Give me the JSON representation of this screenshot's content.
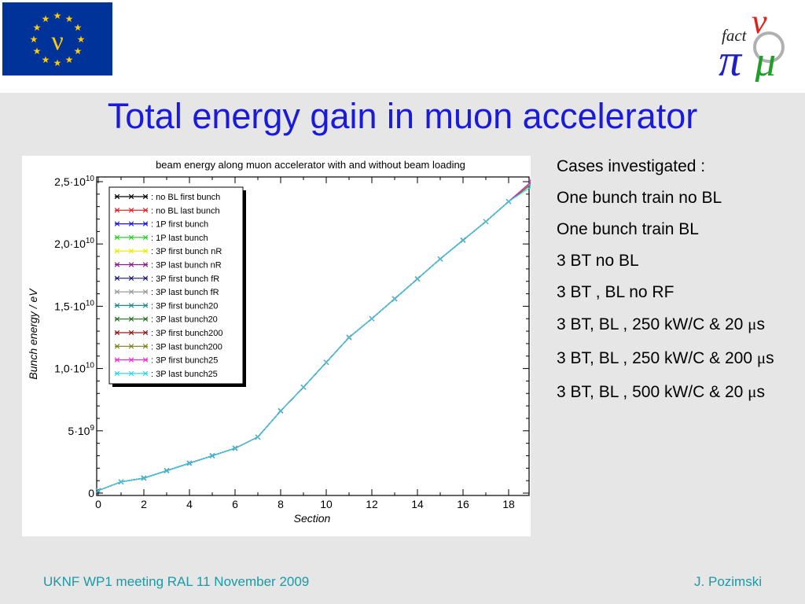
{
  "title": "Total energy gain in muon accelerator",
  "logos": {
    "eu_flag_letter": "ν",
    "fact_logo_text": "fact"
  },
  "chart_data": {
    "type": "line",
    "title": "beam energy along muon accelerator with and without beam loading",
    "xlabel": "Section",
    "ylabel": "Bunch energy / eV",
    "xlim": [
      0,
      19
    ],
    "ylim": [
      0,
      25000000000
    ],
    "x_ticks": [
      {
        "value": 0,
        "label": "0"
      },
      {
        "value": 2,
        "label": "2"
      },
      {
        "value": 4,
        "label": "4"
      },
      {
        "value": 6,
        "label": "6"
      },
      {
        "value": 8,
        "label": "8"
      },
      {
        "value": 10,
        "label": "10"
      },
      {
        "value": 12,
        "label": "12"
      },
      {
        "value": 14,
        "label": "14"
      },
      {
        "value": 16,
        "label": "16"
      },
      {
        "value": 18,
        "label": "18"
      }
    ],
    "y_ticks": [
      {
        "value": 0,
        "mantissa": "0",
        "exp": ""
      },
      {
        "value": 5000000000,
        "mantissa": "5·10",
        "exp": "9"
      },
      {
        "value": 10000000000,
        "mantissa": "1,0·10",
        "exp": "10"
      },
      {
        "value": 15000000000,
        "mantissa": "1,5·10",
        "exp": "10"
      },
      {
        "value": 20000000000,
        "mantissa": "2,0·10",
        "exp": "10"
      },
      {
        "value": 25000000000,
        "mantissa": "2,5·10",
        "exp": "10"
      }
    ],
    "grid": false,
    "legend_position": "top-left",
    "x": [
      0,
      1,
      2,
      3,
      4,
      5,
      6,
      7,
      8,
      9,
      10,
      11,
      12,
      13,
      14,
      15,
      16,
      17,
      18,
      19
    ],
    "series": [
      {
        "name": ": no BL first bunch",
        "color": "#000000",
        "values": [
          200000000,
          900000000,
          1200000000,
          1800000000,
          2400000000,
          3000000000,
          3600000000,
          4500000000,
          6600000000,
          8500000000,
          10500000000,
          12500000000,
          14000000000,
          15600000000,
          17200000000,
          18800000000,
          20300000000,
          21800000000,
          23400000000,
          25000000000
        ]
      },
      {
        "name": ": no BL last bunch",
        "color": "#e8141d",
        "values": [
          200000000,
          900000000,
          1200000000,
          1800000000,
          2400000000,
          3000000000,
          3600000000,
          4500000000,
          6600000000,
          8500000000,
          10500000000,
          12500000000,
          14000000000,
          15600000000,
          17200000000,
          18800000000,
          20300000000,
          21800000000,
          23400000000,
          25000000000
        ]
      },
      {
        "name": ": 1P first bunch",
        "color": "#1414e0",
        "values": [
          200000000,
          900000000,
          1200000000,
          1800000000,
          2400000000,
          3000000000,
          3600000000,
          4500000000,
          6600000000,
          8500000000,
          10500000000,
          12500000000,
          14000000000,
          15600000000,
          17200000000,
          18800000000,
          20300000000,
          21800000000,
          23400000000,
          25000000000
        ]
      },
      {
        "name": ": 1P last bunch",
        "color": "#22d022",
        "values": [
          200000000,
          900000000,
          1200000000,
          1800000000,
          2400000000,
          3000000000,
          3600000000,
          4500000000,
          6600000000,
          8500000000,
          10500000000,
          12500000000,
          14000000000,
          15600000000,
          17200000000,
          18800000000,
          20300000000,
          21800000000,
          23400000000,
          24800000000
        ]
      },
      {
        "name": ": 3P first bunch nR",
        "color": "#e8e800",
        "values": [
          200000000,
          900000000,
          1200000000,
          1800000000,
          2400000000,
          3000000000,
          3600000000,
          4500000000,
          6600000000,
          8500000000,
          10500000000,
          12500000000,
          14000000000,
          15600000000,
          17200000000,
          18800000000,
          20300000000,
          21800000000,
          23400000000,
          25000000000
        ]
      },
      {
        "name": ": 3P last bunch nR",
        "color": "#8a1a8a",
        "values": [
          200000000,
          900000000,
          1200000000,
          1800000000,
          2400000000,
          3000000000,
          3600000000,
          4500000000,
          6600000000,
          8500000000,
          10500000000,
          12500000000,
          14000000000,
          15600000000,
          17200000000,
          18800000000,
          20300000000,
          21800000000,
          23400000000,
          24900000000
        ]
      },
      {
        "name": ": 3P first bunch fR",
        "color": "#14146e",
        "values": [
          200000000,
          900000000,
          1200000000,
          1800000000,
          2400000000,
          3000000000,
          3600000000,
          4500000000,
          6600000000,
          8500000000,
          10500000000,
          12500000000,
          14000000000,
          15600000000,
          17200000000,
          18800000000,
          20300000000,
          21800000000,
          23400000000,
          25000000000
        ]
      },
      {
        "name": ": 3P last bunch fR",
        "color": "#9a9a9a",
        "values": [
          200000000,
          900000000,
          1200000000,
          1800000000,
          2400000000,
          3000000000,
          3600000000,
          4500000000,
          6600000000,
          8500000000,
          10500000000,
          12500000000,
          14000000000,
          15600000000,
          17200000000,
          18800000000,
          20300000000,
          21800000000,
          23400000000,
          24900000000
        ]
      },
      {
        "name": ": 3P first bunch20",
        "color": "#1a8a8a",
        "values": [
          200000000,
          900000000,
          1200000000,
          1800000000,
          2400000000,
          3000000000,
          3600000000,
          4500000000,
          6600000000,
          8500000000,
          10500000000,
          12500000000,
          14000000000,
          15600000000,
          17200000000,
          18800000000,
          20300000000,
          21800000000,
          23400000000,
          25000000000
        ]
      },
      {
        "name": ": 3P last bunch20",
        "color": "#1a6e1a",
        "values": [
          200000000,
          900000000,
          1200000000,
          1800000000,
          2400000000,
          3000000000,
          3600000000,
          4500000000,
          6600000000,
          8500000000,
          10500000000,
          12500000000,
          14000000000,
          15600000000,
          17200000000,
          18800000000,
          20300000000,
          21800000000,
          23400000000,
          24800000000
        ]
      },
      {
        "name": ": 3P first bunch200",
        "color": "#8a1a1a",
        "values": [
          200000000,
          900000000,
          1200000000,
          1800000000,
          2400000000,
          3000000000,
          3600000000,
          4500000000,
          6600000000,
          8500000000,
          10500000000,
          12500000000,
          14000000000,
          15600000000,
          17200000000,
          18800000000,
          20300000000,
          21800000000,
          23400000000,
          25000000000
        ]
      },
      {
        "name": ": 3P last bunch200",
        "color": "#7a7a1a",
        "values": [
          200000000,
          900000000,
          1200000000,
          1800000000,
          2400000000,
          3000000000,
          3600000000,
          4500000000,
          6600000000,
          8500000000,
          10500000000,
          12500000000,
          14000000000,
          15600000000,
          17200000000,
          18800000000,
          20300000000,
          21800000000,
          23400000000,
          24800000000
        ]
      },
      {
        "name": ": 3P first bunch25",
        "color": "#f028e0",
        "values": [
          200000000,
          900000000,
          1200000000,
          1800000000,
          2400000000,
          3000000000,
          3600000000,
          4500000000,
          6600000000,
          8500000000,
          10500000000,
          12500000000,
          14000000000,
          15600000000,
          17200000000,
          18800000000,
          20300000000,
          21800000000,
          23400000000,
          25000000000
        ]
      },
      {
        "name": ": 3P last bunch25",
        "color": "#28d8e8",
        "values": [
          200000000,
          900000000,
          1200000000,
          1800000000,
          2400000000,
          3000000000,
          3600000000,
          4500000000,
          6600000000,
          8500000000,
          10500000000,
          12500000000,
          14000000000,
          15600000000,
          17200000000,
          18800000000,
          20300000000,
          21800000000,
          23400000000,
          24600000000
        ]
      }
    ]
  },
  "cases": {
    "heading": "Cases investigated :",
    "items": [
      "One bunch train no BL",
      "One bunch train BL",
      "3 BT no BL",
      "3 BT , BL no RF"
    ],
    "items_mu": [
      {
        "before": "3 BT, BL , 250 kW/C & 20 ",
        "mu": "μ",
        "after": "s"
      },
      {
        "before": "3 BT, BL , 250 kW/C & 200 ",
        "mu": "μ",
        "after": "s"
      },
      {
        "before": "3 BT, BL , 500 kW/C & 20 ",
        "mu": "μ",
        "after": "s"
      }
    ]
  },
  "footer": {
    "left": "UKNF WP1 meeting RAL 11 November 2009",
    "right": "J. Pozimski"
  },
  "colors": {
    "title": "#1a1adc",
    "footer": "#1a9aa6",
    "background": "#e6e6e6",
    "eu_blue": "#003399",
    "eu_star": "#ffcc00"
  }
}
